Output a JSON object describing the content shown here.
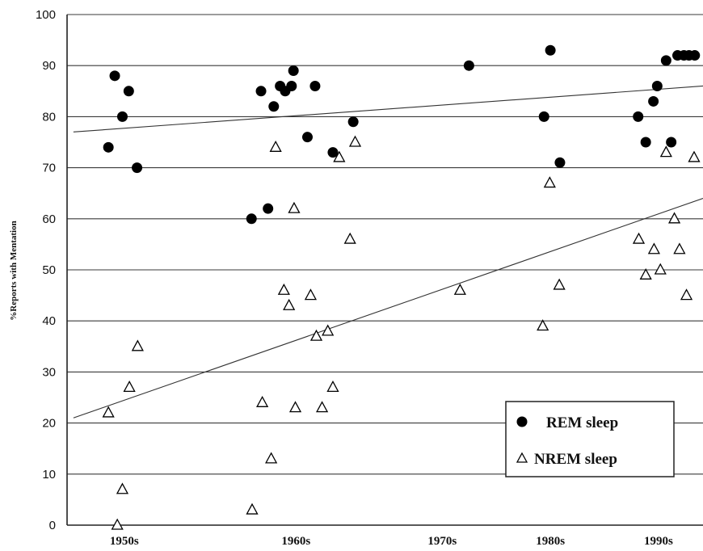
{
  "chart_data": {
    "type": "scatter",
    "title": "",
    "xlabel": "",
    "ylabel": "%Reports with Mentation",
    "ylim": [
      0,
      100
    ],
    "xlim": [
      0,
      100
    ],
    "yticks": [
      "0",
      "10",
      "20",
      "30",
      "40",
      "50",
      "60",
      "70",
      "80",
      "90",
      "100"
    ],
    "ytick_values": [
      0,
      10,
      20,
      30,
      40,
      50,
      60,
      70,
      80,
      90,
      100
    ],
    "xtick_labels": [
      {
        "label": "1950s",
        "x": 9
      },
      {
        "label": "1960s",
        "x": 36
      },
      {
        "label": "1970s",
        "x": 59
      },
      {
        "label": "1980s",
        "x": 76
      },
      {
        "label": "1990s",
        "x": 93
      }
    ],
    "grid": "horizontal",
    "legend_position": "bottom-right",
    "series": [
      {
        "name": "REM sleep",
        "marker": "filled-circle",
        "color": "#000000",
        "points": [
          [
            6.5,
            74
          ],
          [
            7.5,
            88
          ],
          [
            8.7,
            80
          ],
          [
            9.7,
            85
          ],
          [
            11,
            70
          ],
          [
            29,
            60
          ],
          [
            30.5,
            85
          ],
          [
            31.6,
            62
          ],
          [
            32.5,
            82
          ],
          [
            33.5,
            86
          ],
          [
            34.3,
            85
          ],
          [
            35.3,
            86
          ],
          [
            35.6,
            89
          ],
          [
            37.8,
            76
          ],
          [
            39,
            86
          ],
          [
            41.8,
            73
          ],
          [
            45,
            79
          ],
          [
            63.2,
            90
          ],
          [
            75,
            80
          ],
          [
            76,
            93
          ],
          [
            77.5,
            71
          ],
          [
            89.8,
            80
          ],
          [
            91,
            75
          ],
          [
            92.2,
            83
          ],
          [
            92.8,
            86
          ],
          [
            94.2,
            91
          ],
          [
            95,
            75
          ],
          [
            96,
            92
          ],
          [
            97,
            92
          ],
          [
            97.8,
            92
          ],
          [
            98.7,
            92
          ]
        ]
      },
      {
        "name": "NREM sleep",
        "marker": "open-triangle",
        "color": "#000000",
        "points": [
          [
            6.5,
            22
          ],
          [
            7.9,
            0
          ],
          [
            8.7,
            7
          ],
          [
            9.8,
            27
          ],
          [
            11.1,
            35
          ],
          [
            29.1,
            3
          ],
          [
            30.7,
            24
          ],
          [
            32.1,
            13
          ],
          [
            32.8,
            74
          ],
          [
            34.1,
            46
          ],
          [
            34.9,
            43
          ],
          [
            35.7,
            62
          ],
          [
            35.9,
            23
          ],
          [
            38.3,
            45
          ],
          [
            39.2,
            37
          ],
          [
            40.1,
            23
          ],
          [
            41,
            38
          ],
          [
            41.8,
            27
          ],
          [
            42.8,
            72
          ],
          [
            44.5,
            56
          ],
          [
            45.3,
            75
          ],
          [
            61.8,
            46
          ],
          [
            74.8,
            39
          ],
          [
            75.9,
            67
          ],
          [
            77.4,
            47
          ],
          [
            89.9,
            56
          ],
          [
            91,
            49
          ],
          [
            92.3,
            54
          ],
          [
            93.3,
            50
          ],
          [
            94.2,
            73
          ],
          [
            95.5,
            60
          ],
          [
            96.3,
            54
          ],
          [
            97.4,
            45
          ],
          [
            98.6,
            72
          ]
        ]
      }
    ],
    "trend_lines": [
      {
        "series": "REM sleep",
        "from": [
          1,
          77
        ],
        "to": [
          100,
          86
        ]
      },
      {
        "series": "NREM sleep",
        "from": [
          1,
          21
        ],
        "to": [
          100,
          64
        ]
      }
    ],
    "legend": [
      {
        "label": "REM sleep",
        "marker": "filled-circle"
      },
      {
        "label": "NREM sleep",
        "marker": "open-triangle"
      }
    ]
  }
}
